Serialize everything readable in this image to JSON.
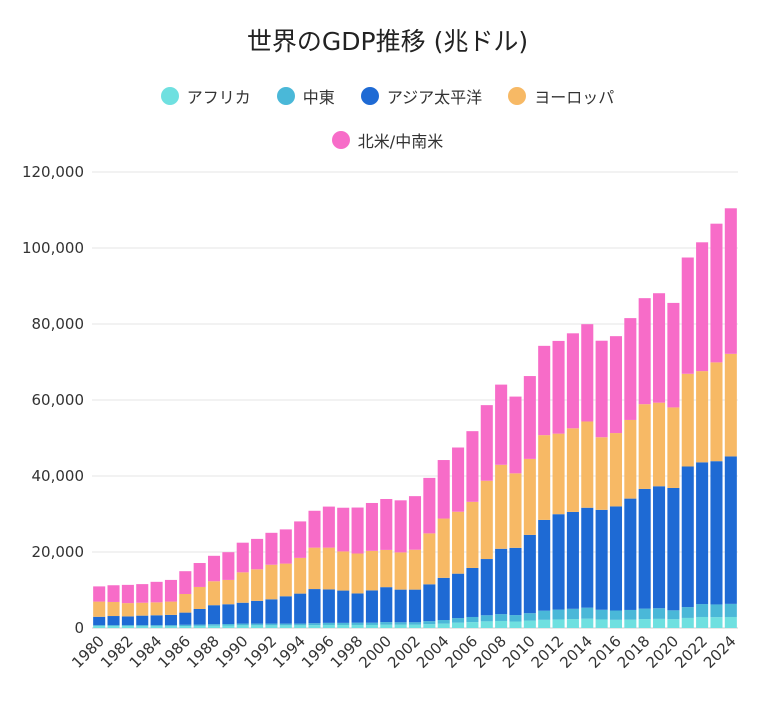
{
  "chart_data": {
    "type": "bar",
    "stacked": true,
    "title": "世界のGDP推移 (兆ドル)",
    "xlabel": "",
    "ylabel": "",
    "ylim": [
      0,
      120000
    ],
    "yticks": [
      "0",
      "20,000",
      "40,000",
      "60,000",
      "80,000",
      "100,000",
      "120,000"
    ],
    "xticks": [
      "1980",
      "1982",
      "1984",
      "1986",
      "1988",
      "1990",
      "1992",
      "1994",
      "1996",
      "1998",
      "2000",
      "2002",
      "2004",
      "2006",
      "2008",
      "2010",
      "2012",
      "2014",
      "2016",
      "2018",
      "2020",
      "2022",
      "2024"
    ],
    "grid": true,
    "legend_position": "top",
    "categories": [
      "1980",
      "1981",
      "1982",
      "1983",
      "1984",
      "1985",
      "1986",
      "1987",
      "1988",
      "1989",
      "1990",
      "1991",
      "1992",
      "1993",
      "1994",
      "1995",
      "1996",
      "1997",
      "1998",
      "1999",
      "2000",
      "2001",
      "2002",
      "2003",
      "2004",
      "2005",
      "2006",
      "2007",
      "2008",
      "2009",
      "2010",
      "2011",
      "2012",
      "2013",
      "2014",
      "2015",
      "2016",
      "2017",
      "2018",
      "2019",
      "2020",
      "2021",
      "2022",
      "2023",
      "2024"
    ],
    "series": [
      {
        "name": "アフリカ",
        "color": "#6fe0e0",
        "values": [
          500,
          500,
          500,
          450,
          450,
          450,
          500,
          550,
          600,
          650,
          700,
          700,
          700,
          700,
          700,
          750,
          800,
          800,
          800,
          800,
          850,
          850,
          850,
          1000,
          1150,
          1400,
          1550,
          1750,
          1850,
          1700,
          1950,
          2150,
          2250,
          2350,
          2450,
          2250,
          2150,
          2200,
          2350,
          2400,
          2300,
          2650,
          2900,
          2850,
          2900
        ]
      },
      {
        "name": "中東",
        "color": "#4ab8d8",
        "values": [
          250,
          250,
          250,
          300,
          300,
          300,
          350,
          350,
          400,
          400,
          450,
          450,
          450,
          450,
          450,
          500,
          550,
          550,
          600,
          600,
          700,
          650,
          650,
          800,
          950,
          1200,
          1350,
          1600,
          1800,
          1700,
          1950,
          2400,
          2600,
          2700,
          2900,
          2550,
          2450,
          2550,
          2750,
          2800,
          2350,
          2850,
          3400,
          3350,
          3450
        ]
      },
      {
        "name": "アジア太平洋",
        "color": "#1e6ad4",
        "values": [
          2200,
          2400,
          2300,
          2500,
          2600,
          2700,
          3200,
          4100,
          5000,
          5200,
          5500,
          6000,
          6400,
          7200,
          7900,
          9000,
          8800,
          8500,
          7700,
          8500,
          9200,
          8600,
          8600,
          9700,
          11100,
          11700,
          12900,
          14800,
          17200,
          17700,
          20600,
          23900,
          25100,
          25500,
          26300,
          26300,
          27400,
          29300,
          31500,
          32100,
          32200,
          37000,
          37300,
          37700,
          38800
        ]
      },
      {
        "name": "ヨーロッパ",
        "color": "#f7b965",
        "values": [
          4000,
          3700,
          3500,
          3400,
          3400,
          3500,
          4900,
          5800,
          6300,
          6400,
          8000,
          8300,
          9100,
          8600,
          9400,
          10900,
          11000,
          10300,
          10500,
          10400,
          9800,
          9800,
          10500,
          13400,
          15600,
          16300,
          17400,
          20600,
          22100,
          19600,
          20000,
          22300,
          21200,
          22000,
          22700,
          19100,
          19300,
          20700,
          22300,
          22000,
          21200,
          24400,
          24000,
          26000,
          27000
        ]
      },
      {
        "name": "北米/中南米",
        "color": "#f76cc8",
        "values": [
          4000,
          4400,
          4800,
          4900,
          5400,
          5700,
          6000,
          6300,
          6700,
          7300,
          7800,
          8000,
          8400,
          9000,
          9600,
          9700,
          10800,
          11500,
          12100,
          12600,
          13400,
          13700,
          14100,
          14600,
          15400,
          16900,
          18600,
          19900,
          21100,
          20200,
          21800,
          23500,
          24400,
          25000,
          25600,
          25400,
          25500,
          26800,
          27900,
          28800,
          27500,
          30600,
          33900,
          36500,
          38300
        ]
      }
    ]
  }
}
